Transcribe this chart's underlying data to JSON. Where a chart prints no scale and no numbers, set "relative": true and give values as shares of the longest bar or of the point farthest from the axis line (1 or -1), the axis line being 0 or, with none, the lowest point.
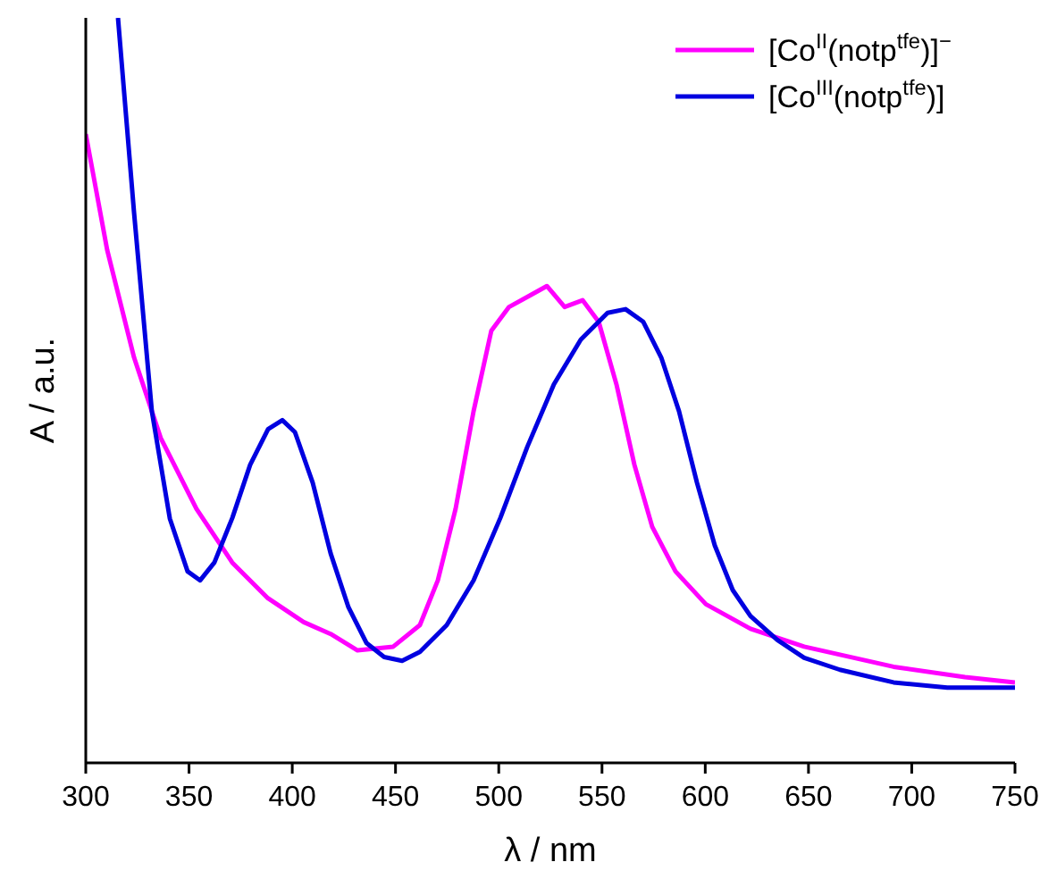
{
  "chart_data": {
    "type": "line",
    "relative": true,
    "xlabel": "λ / nm",
    "ylabel": "A / a.u.",
    "xlim": [
      300,
      750
    ],
    "xticks": [
      300,
      350,
      400,
      450,
      500,
      550,
      600,
      650,
      700,
      750
    ],
    "legend": "top right",
    "grid": false,
    "marker": "none",
    "line_style": "solid",
    "series": [
      {
        "name": "[Co$^{II}$(notp$^{tfe}$)]$^{−}$",
        "color": "#ff00ff",
        "x": [
          300,
          310.4,
          323.4,
          336.3,
          353.6,
          370.9,
          388.2,
          405.5,
          418.6,
          431.6,
          448.9,
          461.8,
          470.5,
          479.1,
          487.8,
          496.4,
          505,
          515.5,
          523.3,
          531.9,
          540.6,
          548.4,
          557,
          565.7,
          574.3,
          585.6,
          600.3,
          621.9,
          647.9,
          691.2,
          725.8,
          750
        ],
        "values": [
          0.844,
          0.688,
          0.544,
          0.436,
          0.341,
          0.269,
          0.221,
          0.189,
          0.173,
          0.151,
          0.156,
          0.185,
          0.245,
          0.341,
          0.472,
          0.58,
          0.612,
          0.628,
          0.64,
          0.612,
          0.621,
          0.592,
          0.508,
          0.4,
          0.317,
          0.257,
          0.213,
          0.18,
          0.156,
          0.129,
          0.115,
          0.108
        ]
      },
      {
        "name": "[Co$^{III}$(notp$^{tfe}$)]",
        "color": "#0000e0",
        "x": [
          315.6,
          323.4,
          332,
          340.7,
          349.3,
          355.4,
          362.3,
          371,
          379.6,
          388.3,
          395.2,
          401.3,
          409.9,
          418.6,
          427.2,
          435.9,
          444.5,
          453.2,
          461.8,
          474.8,
          487.8,
          500.8,
          513.8,
          526.7,
          539.7,
          552.7,
          561.4,
          570,
          578.7,
          587.3,
          596,
          604.6,
          613.3,
          621.9,
          634.9,
          647.9,
          665.2,
          691.2,
          717.2,
          750
        ],
        "values": [
          1,
          0.738,
          0.472,
          0.328,
          0.257,
          0.245,
          0.269,
          0.329,
          0.4,
          0.448,
          0.46,
          0.444,
          0.376,
          0.281,
          0.209,
          0.161,
          0.142,
          0.137,
          0.149,
          0.185,
          0.245,
          0.329,
          0.424,
          0.508,
          0.568,
          0.604,
          0.609,
          0.592,
          0.544,
          0.472,
          0.376,
          0.292,
          0.232,
          0.197,
          0.165,
          0.141,
          0.125,
          0.108,
          0.101,
          0.101
        ]
      }
    ]
  }
}
